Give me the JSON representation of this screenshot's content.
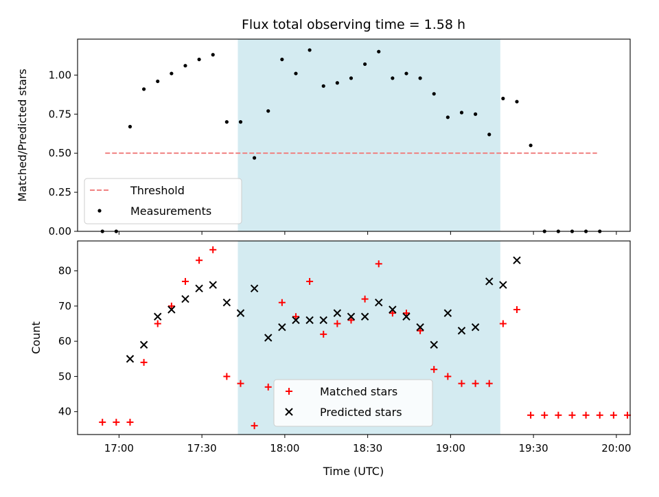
{
  "chart_data": {
    "type": "scatter",
    "title": "Flux total observing time = 1.58 h",
    "xlabel": "Time (UTC)",
    "xlim": [
      "16:45",
      "20:05"
    ],
    "x_ticks": [
      "17:00",
      "17:30",
      "18:00",
      "18:30",
      "19:00",
      "19:30",
      "20:00"
    ],
    "highlight_span": {
      "start": "17:43",
      "end": "19:18",
      "color": "#d4ebf1"
    },
    "panels": [
      {
        "ylabel": "Matched/Predicted stars",
        "ylim": [
          0,
          1.23
        ],
        "y_ticks": [
          "0.00",
          "0.25",
          "0.50",
          "0.75",
          "1.00"
        ],
        "legend": {
          "position": "bottom-left",
          "entries": [
            "Threshold",
            "Measurements"
          ]
        },
        "threshold": {
          "name": "Threshold",
          "value": 0.5,
          "x_start": "16:55",
          "x_end": "19:53",
          "color": "#f08080"
        },
        "series": [
          {
            "name": "Measurements",
            "color": "#000000",
            "marker": "dot",
            "x": [
              "16:54",
              "16:59",
              "17:04",
              "17:09",
              "17:14",
              "17:19",
              "17:24",
              "17:29",
              "17:34",
              "17:39",
              "17:44",
              "17:49",
              "17:54",
              "17:59",
              "18:04",
              "18:09",
              "18:14",
              "18:19",
              "18:24",
              "18:29",
              "18:34",
              "18:39",
              "18:44",
              "18:49",
              "18:54",
              "18:59",
              "19:04",
              "19:09",
              "19:14",
              "19:19",
              "19:24",
              "19:29",
              "19:34",
              "19:39",
              "19:44",
              "19:49",
              "19:54"
            ],
            "y": [
              0.0,
              0.0,
              0.67,
              0.91,
              0.96,
              1.01,
              1.06,
              1.1,
              1.13,
              0.7,
              0.7,
              0.47,
              0.77,
              1.1,
              1.01,
              1.16,
              0.93,
              0.95,
              0.98,
              1.07,
              1.15,
              0.98,
              1.01,
              0.98,
              0.88,
              0.73,
              0.76,
              0.75,
              0.62,
              0.85,
              0.83,
              0.55,
              0.0,
              0.0,
              0.0,
              0.0,
              0.0
            ]
          }
        ]
      },
      {
        "ylabel": "Count",
        "ylim": [
          33.5,
          88.5
        ],
        "y_ticks": [
          "40",
          "50",
          "60",
          "70",
          "80"
        ],
        "legend": {
          "position": "bottom-center",
          "entries": [
            "Matched stars",
            "Predicted stars"
          ]
        },
        "series": [
          {
            "name": "Matched stars",
            "color": "#ff0000",
            "marker": "plus",
            "x": [
              "16:54",
              "16:59",
              "17:04",
              "17:09",
              "17:14",
              "17:19",
              "17:24",
              "17:29",
              "17:34",
              "17:39",
              "17:44",
              "17:49",
              "17:54",
              "17:59",
              "18:04",
              "18:09",
              "18:14",
              "18:19",
              "18:24",
              "18:29",
              "18:34",
              "18:39",
              "18:44",
              "18:49",
              "18:54",
              "18:59",
              "19:04",
              "19:09",
              "19:14",
              "19:19",
              "19:24",
              "19:29",
              "19:34",
              "19:39",
              "19:44",
              "19:49",
              "19:54",
              "19:59",
              "20:04"
            ],
            "y": [
              37,
              37,
              37,
              54,
              65,
              70,
              77,
              83,
              86,
              50,
              48,
              36,
              47,
              71,
              67,
              77,
              62,
              65,
              66,
              72,
              82,
              68,
              68,
              63,
              52,
              50,
              48,
              48,
              48,
              65,
              69,
              39,
              39,
              39,
              39,
              39,
              39,
              39,
              39
            ]
          },
          {
            "name": "Predicted stars",
            "color": "#000000",
            "marker": "x",
            "x": [
              "17:04",
              "17:09",
              "17:14",
              "17:19",
              "17:24",
              "17:29",
              "17:34",
              "17:39",
              "17:44",
              "17:49",
              "17:54",
              "17:59",
              "18:04",
              "18:09",
              "18:14",
              "18:19",
              "18:24",
              "18:29",
              "18:34",
              "18:39",
              "18:44",
              "18:49",
              "18:54",
              "18:59",
              "19:04",
              "19:09",
              "19:14",
              "19:19",
              "19:24"
            ],
            "y": [
              55,
              59,
              67,
              69,
              72,
              75,
              76,
              71,
              68,
              75,
              61,
              64,
              66,
              66,
              66,
              68,
              67,
              67,
              71,
              69,
              67,
              64,
              59,
              68,
              63,
              64,
              77,
              76,
              83
            ]
          }
        ]
      }
    ]
  }
}
